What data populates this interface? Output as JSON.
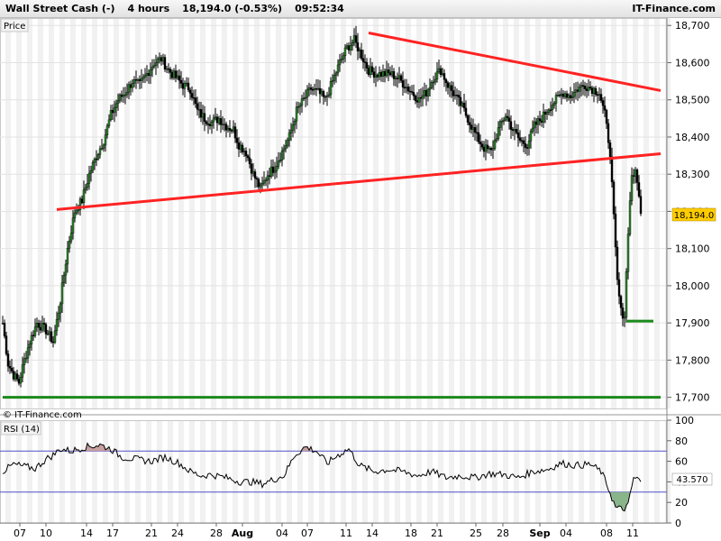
{
  "header": {
    "instrument": "Wall Street Cash (-)",
    "timeframe": "4 hours",
    "price": "18,194.0",
    "change": "(-0.53%)",
    "time": "09:52:34",
    "brand": "IT-Finance.com"
  },
  "price_panel": {
    "label": "Price",
    "watermark": "© IT-Finance.com",
    "current_price_label": "18,194.0",
    "current_price_bg": "#ffcc00",
    "y_ticks": [
      "18,700",
      "18,600",
      "18,500",
      "18,400",
      "18,300",
      "18,200",
      "18,100",
      "18,000",
      "17,900",
      "17,800",
      "17,700"
    ]
  },
  "rsi_panel": {
    "label": "RSI (14)",
    "current_value_label": "43.570",
    "y_ticks": [
      "100",
      "80",
      "60",
      "40",
      "20",
      "0"
    ],
    "upper_band": 70,
    "lower_band": 30
  },
  "x_axis": {
    "labels": [
      "07",
      "10",
      "14",
      "17",
      "21",
      "24",
      "28",
      "Aug",
      "04",
      "07",
      "11",
      "14",
      "18",
      "21",
      "25",
      "28",
      "Sep",
      "04",
      "08",
      "11"
    ]
  },
  "colors": {
    "trendline": "#ff2222",
    "support": "#1a8a1a",
    "rsi_band": "#5050c8",
    "overbought_fill": "#c8a0a0",
    "oversold_fill": "#8ab48a"
  },
  "chart_data": [
    {
      "type": "candlestick",
      "title": "Wall Street Cash (-) 4 hours",
      "ylim": [
        17670,
        18720
      ],
      "y_ticks": [
        17700,
        17800,
        17900,
        18000,
        18100,
        18200,
        18300,
        18400,
        18500,
        18600,
        18700
      ],
      "x_labels": [
        "07",
        "10",
        "14",
        "17",
        "21",
        "24",
        "28",
        "Aug",
        "04",
        "07",
        "11",
        "14",
        "18",
        "21",
        "25",
        "28",
        "Sep",
        "04",
        "08",
        "11"
      ],
      "close_path": [
        [
          0,
          17900
        ],
        [
          3,
          17790
        ],
        [
          6,
          17760
        ],
        [
          9,
          17740
        ],
        [
          12,
          17800
        ],
        [
          15,
          17850
        ],
        [
          19,
          17900
        ],
        [
          24,
          17880
        ],
        [
          28,
          17850
        ],
        [
          32,
          17960
        ],
        [
          36,
          18100
        ],
        [
          40,
          18200
        ],
        [
          44,
          18230
        ],
        [
          48,
          18300
        ],
        [
          52,
          18350
        ],
        [
          56,
          18390
        ],
        [
          60,
          18460
        ],
        [
          64,
          18500
        ],
        [
          68,
          18520
        ],
        [
          72,
          18550
        ],
        [
          76,
          18540
        ],
        [
          80,
          18570
        ],
        [
          84,
          18600
        ],
        [
          88,
          18610
        ],
        [
          92,
          18580
        ],
        [
          96,
          18560
        ],
        [
          100,
          18540
        ],
        [
          104,
          18530
        ],
        [
          108,
          18470
        ],
        [
          112,
          18450
        ],
        [
          116,
          18440
        ],
        [
          120,
          18450
        ],
        [
          124,
          18430
        ],
        [
          128,
          18420
        ],
        [
          131,
          18380
        ],
        [
          135,
          18360
        ],
        [
          139,
          18300
        ],
        [
          143,
          18260
        ],
        [
          147,
          18300
        ],
        [
          151,
          18320
        ],
        [
          155,
          18360
        ],
        [
          159,
          18400
        ],
        [
          163,
          18470
        ],
        [
          167,
          18500
        ],
        [
          171,
          18530
        ],
        [
          175,
          18520
        ],
        [
          179,
          18500
        ],
        [
          183,
          18550
        ],
        [
          187,
          18600
        ],
        [
          191,
          18640
        ],
        [
          195,
          18660
        ],
        [
          199,
          18620
        ],
        [
          203,
          18580
        ],
        [
          207,
          18570
        ],
        [
          211,
          18570
        ],
        [
          215,
          18570
        ],
        [
          219,
          18560
        ],
        [
          223,
          18540
        ],
        [
          227,
          18520
        ],
        [
          231,
          18500
        ],
        [
          235,
          18520
        ],
        [
          239,
          18560
        ],
        [
          243,
          18580
        ],
        [
          247,
          18540
        ],
        [
          251,
          18510
        ],
        [
          255,
          18480
        ],
        [
          259,
          18440
        ],
        [
          263,
          18400
        ],
        [
          267,
          18370
        ],
        [
          271,
          18360
        ],
        [
          275,
          18420
        ],
        [
          279,
          18460
        ],
        [
          283,
          18420
        ],
        [
          287,
          18390
        ],
        [
          291,
          18380
        ],
        [
          295,
          18430
        ],
        [
          299,
          18450
        ],
        [
          303,
          18480
        ],
        [
          307,
          18500
        ],
        [
          311,
          18520
        ],
        [
          315,
          18510
        ],
        [
          319,
          18530
        ],
        [
          323,
          18540
        ],
        [
          327,
          18530
        ],
        [
          331,
          18520
        ],
        [
          334,
          18460
        ],
        [
          337,
          18360
        ],
        [
          339,
          18180
        ],
        [
          341,
          18010
        ],
        [
          343,
          17930
        ],
        [
          345,
          17920
        ],
        [
          347,
          18150
        ],
        [
          349,
          18300
        ],
        [
          351,
          18300
        ],
        [
          353,
          18250
        ],
        [
          354,
          18200
        ]
      ],
      "trendlines": [
        {
          "from": [
            203,
            18680
          ],
          "to": [
            365,
            18525
          ]
        },
        {
          "from": [
            30,
            18205
          ],
          "to": [
            365,
            18355
          ]
        }
      ],
      "support_lines": [
        {
          "y": 17905,
          "from": 346,
          "to": 361
        },
        {
          "y": 17700,
          "from": 0,
          "to": 365
        }
      ],
      "last_price": 18194.0
    },
    {
      "type": "line",
      "title": "RSI (14)",
      "ylim": [
        0,
        100
      ],
      "y_ticks": [
        0,
        20,
        40,
        60,
        80,
        100
      ],
      "bands": [
        30,
        70
      ],
      "points": [
        [
          0,
          50
        ],
        [
          6,
          57
        ],
        [
          12,
          55
        ],
        [
          18,
          53
        ],
        [
          24,
          62
        ],
        [
          28,
          66
        ],
        [
          32,
          72
        ],
        [
          38,
          70
        ],
        [
          46,
          74
        ],
        [
          54,
          76
        ],
        [
          60,
          72
        ],
        [
          66,
          64
        ],
        [
          74,
          62
        ],
        [
          82,
          60
        ],
        [
          90,
          64
        ],
        [
          98,
          58
        ],
        [
          104,
          50
        ],
        [
          110,
          46
        ],
        [
          116,
          47
        ],
        [
          124,
          44
        ],
        [
          132,
          40
        ],
        [
          138,
          40
        ],
        [
          144,
          38
        ],
        [
          150,
          42
        ],
        [
          156,
          46
        ],
        [
          162,
          66
        ],
        [
          168,
          74
        ],
        [
          174,
          70
        ],
        [
          180,
          58
        ],
        [
          186,
          66
        ],
        [
          192,
          72
        ],
        [
          198,
          56
        ],
        [
          206,
          50
        ],
        [
          214,
          52
        ],
        [
          222,
          50
        ],
        [
          230,
          46
        ],
        [
          238,
          50
        ],
        [
          246,
          44
        ],
        [
          254,
          46
        ],
        [
          262,
          44
        ],
        [
          270,
          48
        ],
        [
          278,
          47
        ],
        [
          286,
          44
        ],
        [
          294,
          50
        ],
        [
          302,
          52
        ],
        [
          310,
          58
        ],
        [
          318,
          56
        ],
        [
          326,
          57
        ],
        [
          332,
          50
        ],
        [
          336,
          34
        ],
        [
          340,
          15
        ],
        [
          344,
          13
        ],
        [
          347,
          17
        ],
        [
          350,
          44
        ],
        [
          353,
          42
        ],
        [
          354,
          40
        ]
      ]
    }
  ]
}
